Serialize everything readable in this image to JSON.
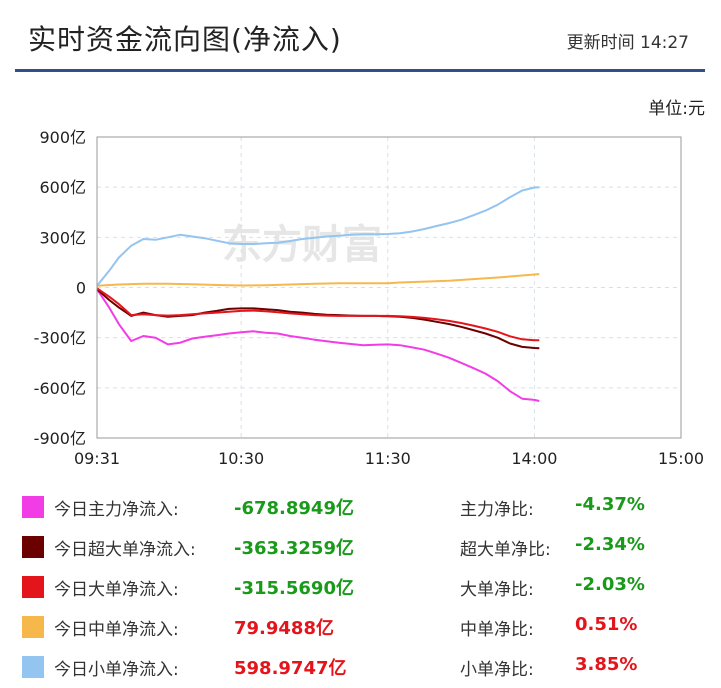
{
  "header": {
    "title": "实时资金流向图(净流入)",
    "updated_label": "更新时间",
    "updated_time": "14:27",
    "unit": "单位:元"
  },
  "watermark": "东方财富",
  "chart_data": {
    "type": "line",
    "x_ticks": [
      "09:31",
      "10:30",
      "11:30",
      "14:00",
      "15:00"
    ],
    "y_ticks": [
      "900亿",
      "600亿",
      "300亿",
      "0",
      "-300亿",
      "-600亿",
      "-900亿"
    ],
    "ylim": [
      -900,
      900
    ],
    "y_unit": "亿",
    "grid": true,
    "series": [
      {
        "name": "今日主力净流入",
        "color": "#f23ce6",
        "points": [
          [
            "09:31",
            -10
          ],
          [
            "09:36",
            -120
          ],
          [
            "09:40",
            -220
          ],
          [
            "09:45",
            -320
          ],
          [
            "09:50",
            -290
          ],
          [
            "09:55",
            -300
          ],
          [
            "10:00",
            -340
          ],
          [
            "10:05",
            -330
          ],
          [
            "10:10",
            -305
          ],
          [
            "10:15",
            -295
          ],
          [
            "10:20",
            -285
          ],
          [
            "10:25",
            -275
          ],
          [
            "10:30",
            -268
          ],
          [
            "10:35",
            -262
          ],
          [
            "10:40",
            -270
          ],
          [
            "10:45",
            -275
          ],
          [
            "10:50",
            -290
          ],
          [
            "10:55",
            -300
          ],
          [
            "11:00",
            -312
          ],
          [
            "11:05",
            -322
          ],
          [
            "11:10",
            -330
          ],
          [
            "11:15",
            -338
          ],
          [
            "11:20",
            -345
          ],
          [
            "11:25",
            -342
          ],
          [
            "11:30",
            -340
          ],
          [
            "13:05",
            -345
          ],
          [
            "13:10",
            -358
          ],
          [
            "13:15",
            -372
          ],
          [
            "13:20",
            -395
          ],
          [
            "13:25",
            -420
          ],
          [
            "13:30",
            -450
          ],
          [
            "13:35",
            -482
          ],
          [
            "13:40",
            -515
          ],
          [
            "13:45",
            -560
          ],
          [
            "13:50",
            -620
          ],
          [
            "13:55",
            -665
          ],
          [
            "14:00",
            -672
          ],
          [
            "14:02",
            -679
          ]
        ]
      },
      {
        "name": "今日超大单净流入",
        "color": "#6b0000",
        "points": [
          [
            "09:31",
            -10
          ],
          [
            "09:36",
            -75
          ],
          [
            "09:40",
            -120
          ],
          [
            "09:45",
            -170
          ],
          [
            "09:50",
            -150
          ],
          [
            "09:55",
            -165
          ],
          [
            "10:00",
            -175
          ],
          [
            "10:05",
            -170
          ],
          [
            "10:10",
            -165
          ],
          [
            "10:15",
            -150
          ],
          [
            "10:20",
            -140
          ],
          [
            "10:25",
            -128
          ],
          [
            "10:30",
            -125
          ],
          [
            "10:35",
            -125
          ],
          [
            "10:40",
            -130
          ],
          [
            "10:45",
            -135
          ],
          [
            "10:50",
            -145
          ],
          [
            "10:55",
            -150
          ],
          [
            "11:00",
            -158
          ],
          [
            "11:05",
            -163
          ],
          [
            "11:10",
            -165
          ],
          [
            "11:15",
            -168
          ],
          [
            "11:20",
            -170
          ],
          [
            "11:25",
            -170
          ],
          [
            "11:30",
            -172
          ],
          [
            "13:05",
            -175
          ],
          [
            "13:10",
            -182
          ],
          [
            "13:15",
            -192
          ],
          [
            "13:20",
            -205
          ],
          [
            "13:25",
            -218
          ],
          [
            "13:30",
            -235
          ],
          [
            "13:35",
            -255
          ],
          [
            "13:40",
            -275
          ],
          [
            "13:45",
            -300
          ],
          [
            "13:50",
            -335
          ],
          [
            "13:55",
            -355
          ],
          [
            "14:00",
            -362
          ],
          [
            "14:02",
            -363
          ]
        ]
      },
      {
        "name": "今日大单净流入",
        "color": "#e4141b",
        "points": [
          [
            "09:31",
            -5
          ],
          [
            "09:36",
            -55
          ],
          [
            "09:40",
            -100
          ],
          [
            "09:45",
            -165
          ],
          [
            "09:50",
            -160
          ],
          [
            "09:55",
            -165
          ],
          [
            "10:00",
            -168
          ],
          [
            "10:05",
            -165
          ],
          [
            "10:10",
            -160
          ],
          [
            "10:15",
            -155
          ],
          [
            "10:20",
            -150
          ],
          [
            "10:25",
            -145
          ],
          [
            "10:30",
            -140
          ],
          [
            "10:35",
            -138
          ],
          [
            "10:40",
            -142
          ],
          [
            "10:45",
            -148
          ],
          [
            "10:50",
            -155
          ],
          [
            "10:55",
            -160
          ],
          [
            "11:00",
            -165
          ],
          [
            "11:05",
            -168
          ],
          [
            "11:10",
            -170
          ],
          [
            "11:15",
            -170
          ],
          [
            "11:20",
            -170
          ],
          [
            "11:25",
            -170
          ],
          [
            "11:30",
            -170
          ],
          [
            "13:05",
            -172
          ],
          [
            "13:10",
            -176
          ],
          [
            "13:15",
            -182
          ],
          [
            "13:20",
            -190
          ],
          [
            "13:25",
            -200
          ],
          [
            "13:30",
            -212
          ],
          [
            "13:35",
            -228
          ],
          [
            "13:40",
            -245
          ],
          [
            "13:45",
            -265
          ],
          [
            "13:50",
            -292
          ],
          [
            "13:55",
            -310
          ],
          [
            "14:00",
            -315
          ],
          [
            "14:02",
            -316
          ]
        ]
      },
      {
        "name": "今日中单净流入",
        "color": "#f7b84b",
        "points": [
          [
            "09:31",
            10
          ],
          [
            "09:40",
            18
          ],
          [
            "09:50",
            22
          ],
          [
            "10:00",
            22
          ],
          [
            "10:10",
            20
          ],
          [
            "10:20",
            15
          ],
          [
            "10:30",
            12
          ],
          [
            "10:40",
            14
          ],
          [
            "10:50",
            18
          ],
          [
            "11:00",
            22
          ],
          [
            "11:10",
            25
          ],
          [
            "11:20",
            25
          ],
          [
            "11:30",
            26
          ],
          [
            "13:05",
            30
          ],
          [
            "13:15",
            35
          ],
          [
            "13:25",
            40
          ],
          [
            "13:35",
            50
          ],
          [
            "13:45",
            60
          ],
          [
            "13:55",
            72
          ],
          [
            "14:00",
            78
          ],
          [
            "14:02",
            80
          ]
        ]
      },
      {
        "name": "今日小单净流入",
        "color": "#94c4f0",
        "points": [
          [
            "09:31",
            10
          ],
          [
            "09:36",
            100
          ],
          [
            "09:40",
            180
          ],
          [
            "09:45",
            250
          ],
          [
            "09:50",
            290
          ],
          [
            "09:55",
            285
          ],
          [
            "10:00",
            300
          ],
          [
            "10:05",
            315
          ],
          [
            "10:10",
            305
          ],
          [
            "10:15",
            295
          ],
          [
            "10:20",
            280
          ],
          [
            "10:25",
            265
          ],
          [
            "10:30",
            260
          ],
          [
            "10:35",
            260
          ],
          [
            "10:40",
            265
          ],
          [
            "10:45",
            268
          ],
          [
            "10:50",
            278
          ],
          [
            "10:55",
            290
          ],
          [
            "11:00",
            298
          ],
          [
            "11:05",
            305
          ],
          [
            "11:10",
            310
          ],
          [
            "11:15",
            315
          ],
          [
            "11:20",
            318
          ],
          [
            "11:25",
            318
          ],
          [
            "11:30",
            320
          ],
          [
            "13:05",
            325
          ],
          [
            "13:10",
            335
          ],
          [
            "13:15",
            350
          ],
          [
            "13:20",
            368
          ],
          [
            "13:25",
            385
          ],
          [
            "13:30",
            405
          ],
          [
            "13:35",
            432
          ],
          [
            "13:40",
            460
          ],
          [
            "13:45",
            495
          ],
          [
            "13:50",
            540
          ],
          [
            "13:55",
            580
          ],
          [
            "14:00",
            598
          ],
          [
            "14:02",
            599
          ]
        ]
      }
    ]
  },
  "legend": [
    {
      "label": "今日主力净流入:",
      "value": "-678.8949亿",
      "ratio_label": "主力净比:",
      "ratio": "-4.37%",
      "color": "#f23ce6",
      "sign": "neg"
    },
    {
      "label": "今日超大单净流入:",
      "value": "-363.3259亿",
      "ratio_label": "超大单净比:",
      "ratio": "-2.34%",
      "color": "#6b0000",
      "sign": "neg"
    },
    {
      "label": "今日大单净流入:",
      "value": "-315.5690亿",
      "ratio_label": "大单净比:",
      "ratio": "-2.03%",
      "color": "#e4141b",
      "sign": "neg"
    },
    {
      "label": "今日中单净流入:",
      "value": "79.9488亿",
      "ratio_label": "中单净比:",
      "ratio": "0.51%",
      "color": "#f7b84b",
      "sign": "pos"
    },
    {
      "label": "今日小单净流入:",
      "value": "598.9747亿",
      "ratio_label": "小单净比:",
      "ratio": "3.85%",
      "color": "#94c4f0",
      "sign": "pos"
    }
  ]
}
